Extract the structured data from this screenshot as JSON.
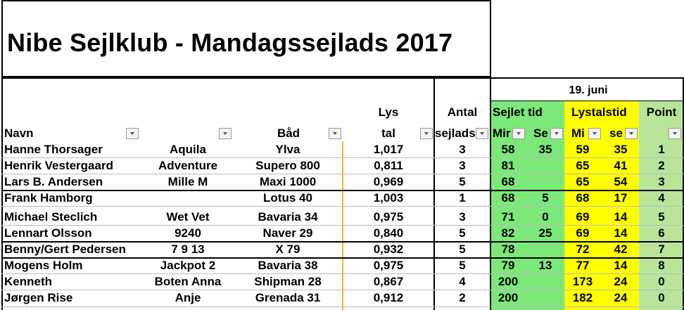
{
  "title": "Nibe Sejlklub - Mandagssejlads 2017",
  "colors": {
    "green": "#7de87a",
    "yellow": "#ffff00",
    "light_green": "#b8e59a",
    "orange_line": "#f3b53c"
  },
  "headers": {
    "date": "19. juni",
    "lys_top": "Lys",
    "lys_bottom": "tal",
    "antal_top": "Antal",
    "antal_bottom": "sejlads",
    "sejlet_tid": "Sejlet tid",
    "lystalstid": "Lystalstid",
    "point": "Point",
    "navn": "Navn",
    "baad": "Båd",
    "min1": "Mir",
    "sek1": "Se",
    "min2": "Mi",
    "sek2": "se"
  },
  "rows": [
    {
      "navn": "Hanne Thorsager",
      "bad_navn": "Aquila",
      "baad": "Ylva",
      "lystal": "1,017",
      "antal": "3",
      "st_min": "58",
      "st_sek": "35",
      "lt_min": "59",
      "lt_sek": "35",
      "point": "1"
    },
    {
      "navn": "Henrik Vestergaard",
      "bad_navn": "Adventure",
      "baad": "Supero 800",
      "lystal": "0,811",
      "antal": "3",
      "st_min": "81",
      "st_sek": "",
      "lt_min": "65",
      "lt_sek": "41",
      "point": "2"
    },
    {
      "navn": "Lars B. Andersen",
      "bad_navn": "Mille M",
      "baad": "Maxi 1000",
      "lystal": "0,969",
      "antal": "5",
      "st_min": "68",
      "st_sek": "",
      "lt_min": "65",
      "lt_sek": "54",
      "point": "3"
    },
    {
      "navn": "Frank Hamborg",
      "bad_navn": "",
      "baad": "Lotus 40",
      "lystal": "1,003",
      "antal": "1",
      "st_min": "68",
      "st_sek": "5",
      "lt_min": "68",
      "lt_sek": "17",
      "point": "4"
    },
    {
      "navn": "Michael Steclich",
      "bad_navn": "Wet Vet",
      "baad": "Bavaria 34",
      "lystal": "0,975",
      "antal": "3",
      "st_min": "71",
      "st_sek": "0",
      "lt_min": "69",
      "lt_sek": "14",
      "point": "5"
    },
    {
      "navn": "Lennart Olsson",
      "bad_navn": "9240",
      "baad": "Naver 29",
      "lystal": "0,840",
      "antal": "5",
      "st_min": "82",
      "st_sek": "25",
      "lt_min": "69",
      "lt_sek": "14",
      "point": "6"
    },
    {
      "navn": "Benny/Gert Pedersen",
      "bad_navn": "7 9 13",
      "baad": "X 79",
      "lystal": "0,932",
      "antal": "5",
      "st_min": "78",
      "st_sek": "",
      "lt_min": "72",
      "lt_sek": "42",
      "point": "7"
    },
    {
      "navn": "Mogens Holm",
      "bad_navn": "Jackpot 2",
      "baad": "Bavaria 38",
      "lystal": "0,975",
      "antal": "5",
      "st_min": "79",
      "st_sek": "13",
      "lt_min": "77",
      "lt_sek": "14",
      "point": "8"
    },
    {
      "navn": "Kenneth",
      "bad_navn": "Boten Anna",
      "baad": "Shipman 28",
      "lystal": "0,867",
      "antal": "4",
      "st_min": "200",
      "st_sek": "",
      "lt_min": "173",
      "lt_sek": "24",
      "point": "0"
    },
    {
      "navn": "Jørgen Rise",
      "bad_navn": "Anje",
      "baad": "Grenada 31",
      "lystal": "0,912",
      "antal": "2",
      "st_min": "200",
      "st_sek": "",
      "lt_min": "182",
      "lt_sek": "24",
      "point": "0"
    }
  ]
}
